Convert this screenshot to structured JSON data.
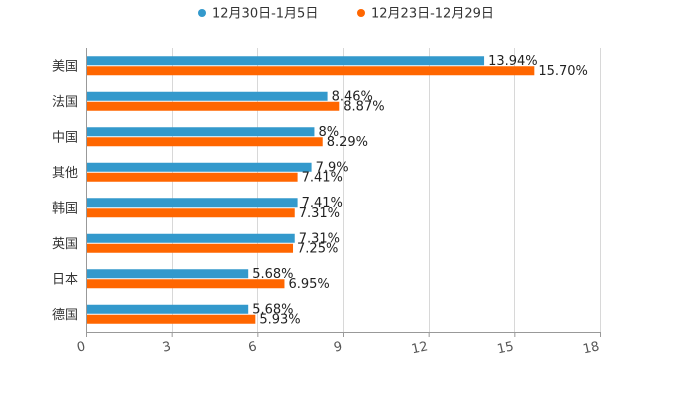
{
  "chart_data": {
    "type": "bar",
    "orientation": "horizontal",
    "title": "",
    "xlabel": "",
    "ylabel": "",
    "categories": [
      "美国",
      "法国",
      "中国",
      "其他",
      "韩国",
      "英国",
      "日本",
      "德国"
    ],
    "series": [
      {
        "name": "12月30日-1月5日",
        "color": "#3399cc",
        "values": [
          13.94,
          8.46,
          8,
          7.9,
          7.41,
          7.31,
          5.68,
          5.68
        ],
        "labels": [
          "13.94%",
          "8.46%",
          "8%",
          "7.9%",
          "7.41%",
          "7.31%",
          "5.68%",
          "5.68%"
        ]
      },
      {
        "name": "12月23日-12月29日",
        "color": "#ff6600",
        "values": [
          15.7,
          8.87,
          8.29,
          7.41,
          7.31,
          7.25,
          6.95,
          5.93
        ],
        "labels": [
          "15.70%",
          "8.87%",
          "8.29%",
          "7.41%",
          "7.31%",
          "7.25%",
          "6.95%",
          "5.93%"
        ]
      }
    ],
    "xlim": [
      0,
      18
    ],
    "xticks": [
      0,
      3,
      6,
      9,
      12,
      15,
      18
    ],
    "xtick_labels": [
      "0",
      "3",
      "6",
      "9",
      "12",
      "15",
      "18"
    ],
    "grid": true,
    "legend_position": "top-center"
  }
}
